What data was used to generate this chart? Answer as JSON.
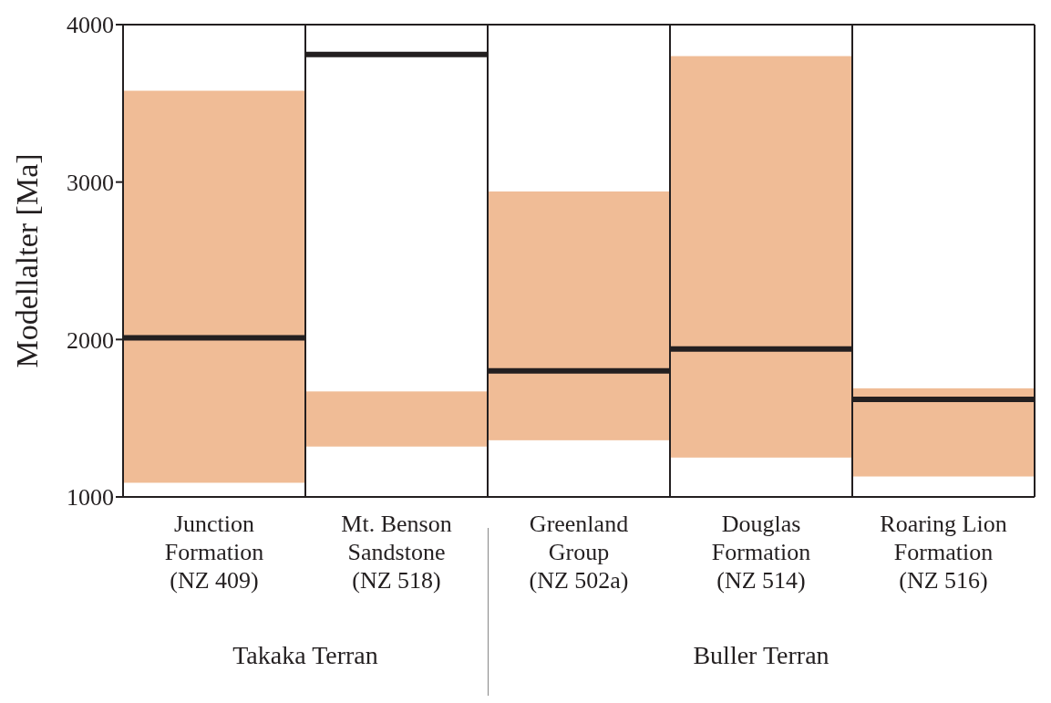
{
  "chart_data": {
    "type": "bar",
    "ylabel": "Modellalter [Ma]",
    "categories": [
      "Junction\nFormation\n(NZ 409)",
      "Mt. Benson\nSandstone\n(NZ 518)",
      "Greenland\nGroup\n(NZ 502a)",
      "Douglas\nFormation\n(NZ 514)",
      "Roaring Lion\nFormation\n(NZ 516)"
    ],
    "series": [
      {
        "type": "bar",
        "color": "#f0bc96",
        "base": [
          1090,
          1320,
          1360,
          1250,
          1130
        ],
        "values": [
          2490,
          350,
          1580,
          2550,
          560
        ]
      }
    ],
    "ref_lines": [
      {
        "axis": "y",
        "value": 2010,
        "color": "#231f20"
      },
      {
        "axis": "y",
        "value": 3810,
        "color": "#231f20"
      },
      {
        "axis": "y",
        "value": 1800,
        "color": "#231f20"
      },
      {
        "axis": "y",
        "value": 1940,
        "color": "#231f20"
      },
      {
        "axis": "y",
        "value": 1620,
        "color": "#231f20"
      }
    ],
    "ylim": [
      1000,
      4000
    ],
    "yticks": [
      1000,
      2000,
      3000,
      4000
    ],
    "grid": false,
    "annotations": [
      "Takaka Terran",
      "Buller Terran"
    ]
  }
}
